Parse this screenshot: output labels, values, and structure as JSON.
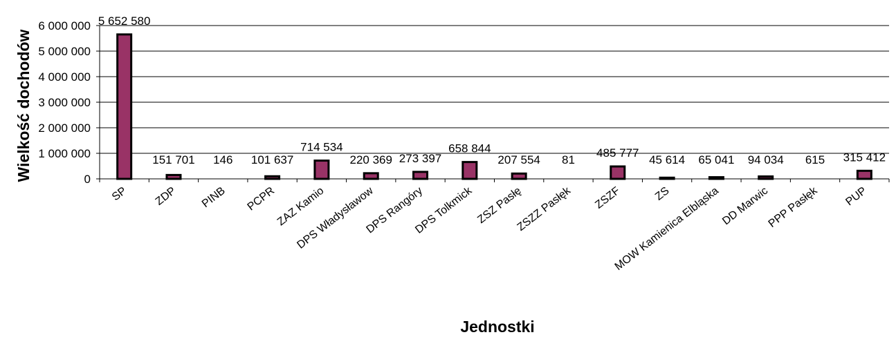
{
  "chart_data": {
    "type": "bar",
    "xlabel": "Jednostki",
    "ylabel": "Wielkość dochodów",
    "ylim": [
      0,
      6000000
    ],
    "yticks": [
      "0",
      "1 000 000",
      "2 000 000",
      "3 000 000",
      "4 000 000",
      "5 000 000",
      "6 000 000"
    ],
    "grid": true,
    "bar_color": "#993366",
    "categories": [
      "SP",
      "ZDP",
      "PINB",
      "PCPR",
      "ZAZ Kamio",
      "DPS Władysławow",
      "DPS Rangóry",
      "DPS Tolkmick",
      "ZSZ Pasłę",
      "ZSZZ Pasłęk",
      "ZSZF",
      "ZS",
      "MOW Kamienica Elbląska",
      "DD Marwic",
      "PPP Pasłęk",
      "PUP"
    ],
    "values": [
      5652580,
      151701,
      146,
      101637,
      714534,
      220369,
      273397,
      658844,
      207554,
      81,
      485777,
      45614,
      65041,
      94034,
      615,
      315412
    ],
    "data_labels": [
      "5 652 580",
      "151 701",
      "146",
      "101 637",
      "714 534",
      "220 369",
      "273 397",
      "658 844",
      "207 554",
      "81",
      "485 777",
      "45 614",
      "65 041",
      "94 034",
      "615",
      "315 412"
    ]
  }
}
